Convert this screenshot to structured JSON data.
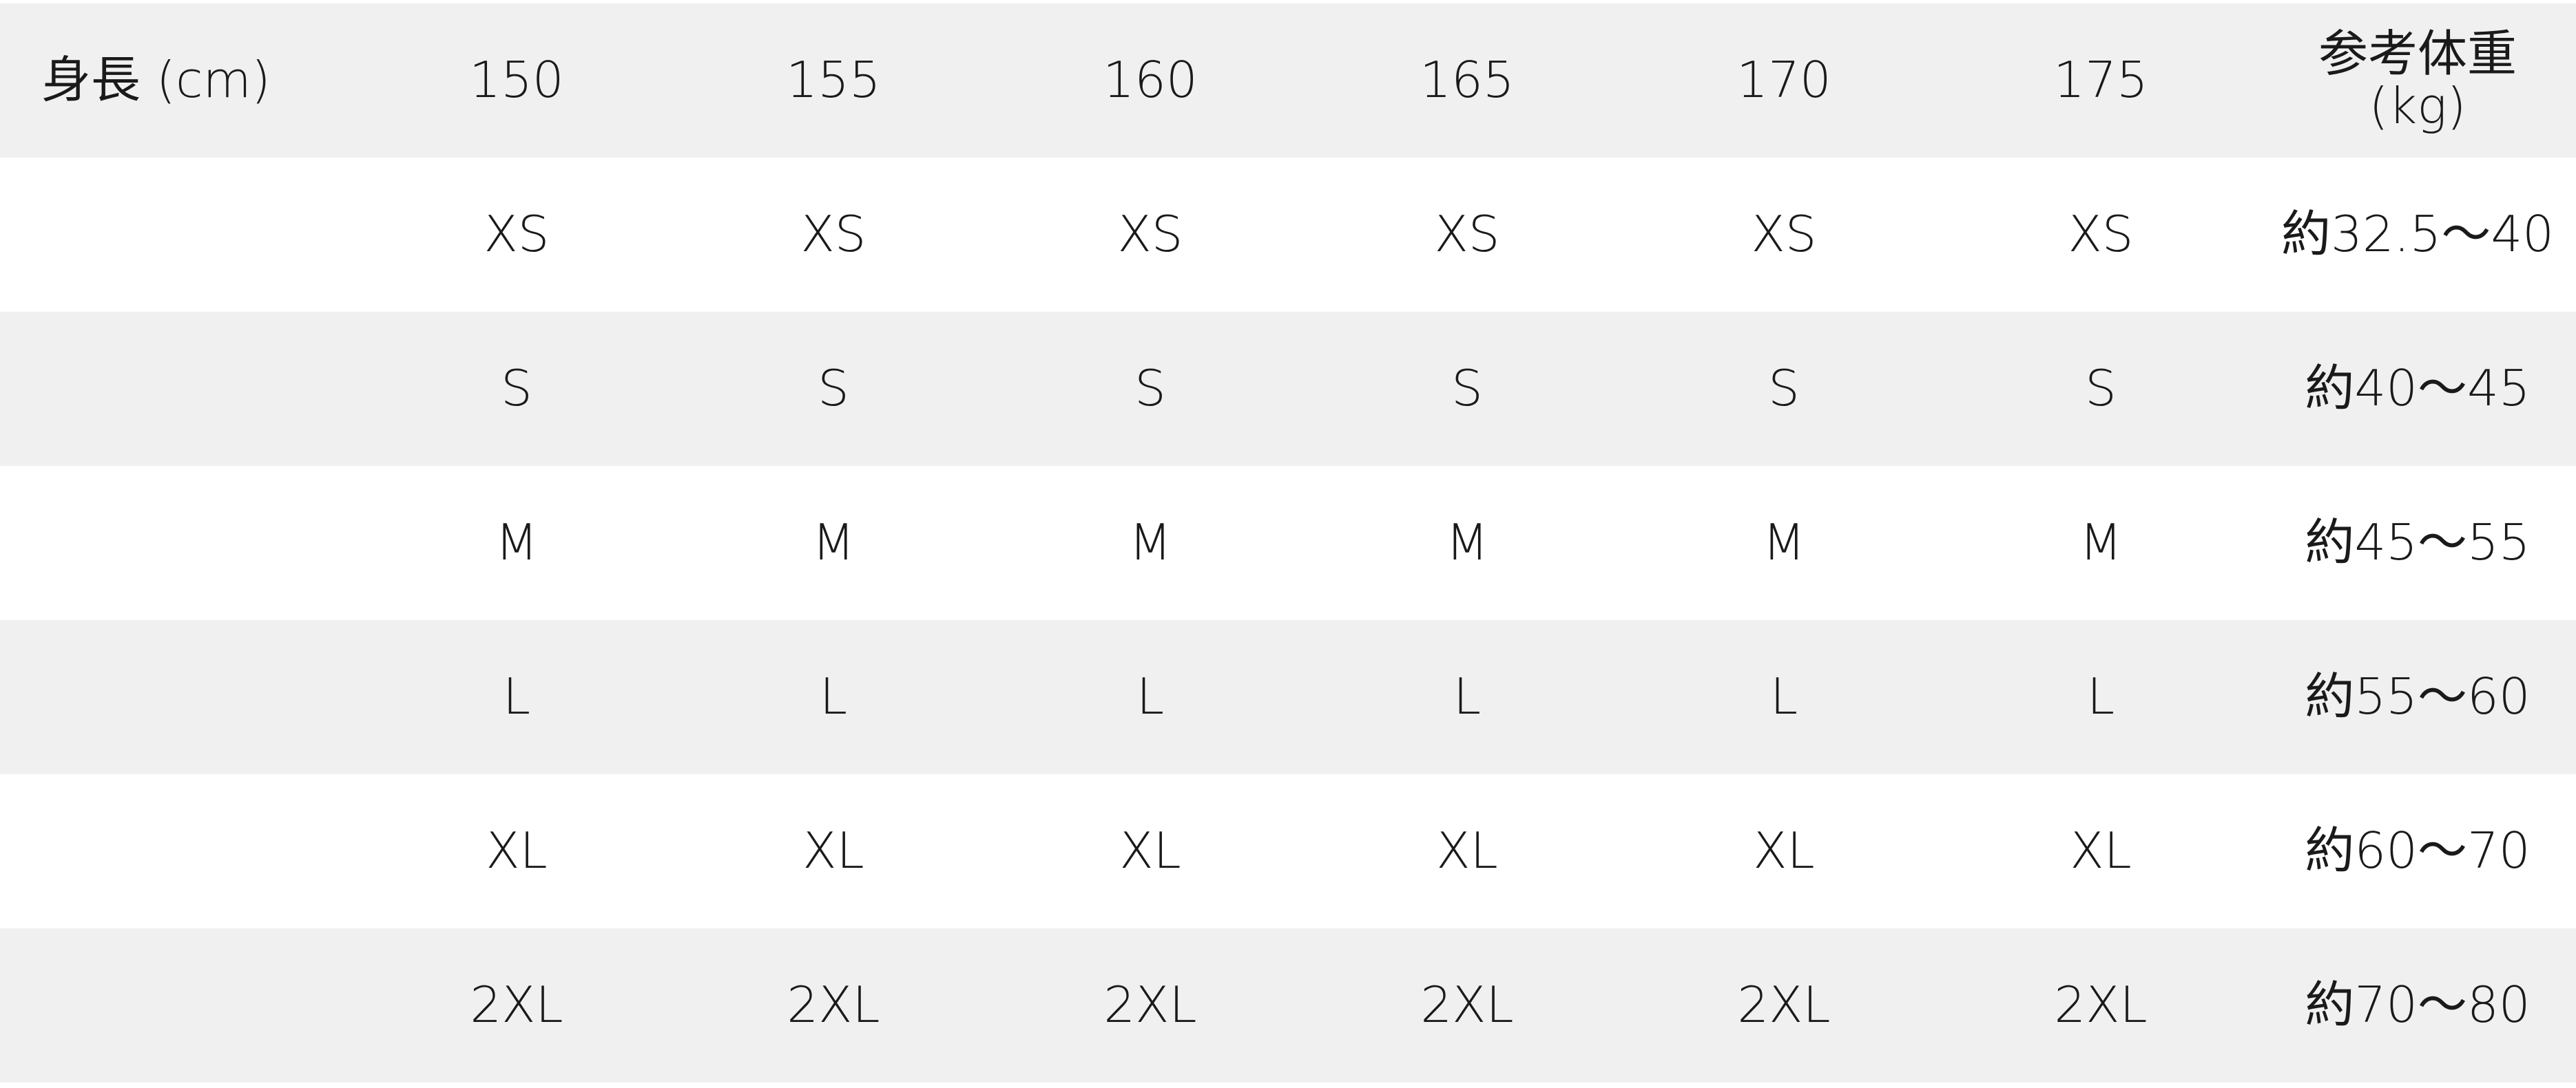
{
  "header": {
    "label": "身長 (cm)",
    "heights": [
      "150",
      "155",
      "160",
      "165",
      "170",
      "175"
    ],
    "weight_label_line1": "参考体重",
    "weight_label_line2": "(kg)"
  },
  "rows": [
    {
      "sizes": [
        "XS",
        "XS",
        "XS",
        "XS",
        "XS",
        "XS"
      ],
      "weight": "約32.5〜40"
    },
    {
      "sizes": [
        "S",
        "S",
        "S",
        "S",
        "S",
        "S"
      ],
      "weight": "約40〜45"
    },
    {
      "sizes": [
        "M",
        "M",
        "M",
        "M",
        "M",
        "M"
      ],
      "weight": "約45〜55"
    },
    {
      "sizes": [
        "L",
        "L",
        "L",
        "L",
        "L",
        "L"
      ],
      "weight": "約55〜60"
    },
    {
      "sizes": [
        "XL",
        "XL",
        "XL",
        "XL",
        "XL",
        "XL"
      ],
      "weight": "約60〜70"
    },
    {
      "sizes": [
        "2XL",
        "2XL",
        "2XL",
        "2XL",
        "2XL",
        "2XL"
      ],
      "weight": "約70〜80"
    }
  ],
  "colors": {
    "stripe": "#f0f0f0",
    "background": "#ffffff",
    "text": "#1a1a1a"
  }
}
